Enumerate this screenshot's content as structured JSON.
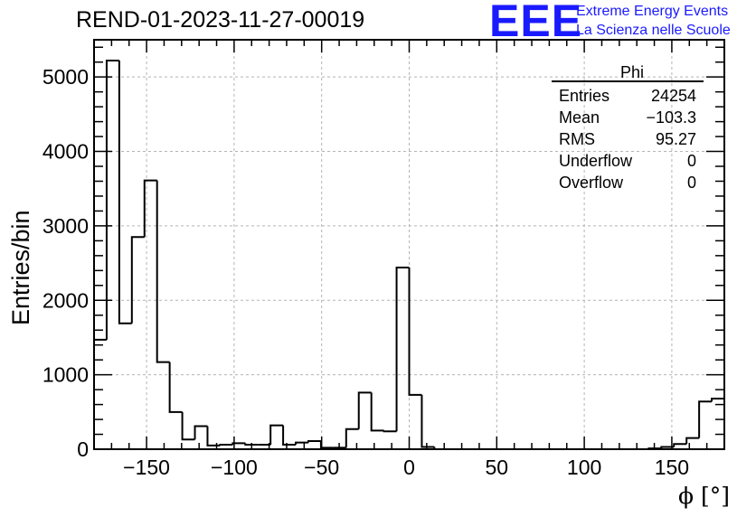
{
  "title": "REND-01-2023-11-27-00019",
  "logo": {
    "mark": "EEE",
    "line1": "Extreme Energy Events",
    "line2": "La Scienza nelle Scuole",
    "color": "#1a1aff"
  },
  "stats": {
    "title": "Phi",
    "rows": [
      {
        "label": "Entries",
        "value": "24254"
      },
      {
        "label": "Mean",
        "value": "−103.3"
      },
      {
        "label": "RMS",
        "value": "95.27"
      },
      {
        "label": "Underflow",
        "value": "0"
      },
      {
        "label": "Overflow",
        "value": "0"
      }
    ]
  },
  "chart_data": {
    "type": "histogram",
    "title": "REND-01-2023-11-27-00019",
    "xlabel": "ϕ [°]",
    "ylabel": "Entries/bin",
    "xlim": [
      -180,
      180
    ],
    "ylim": [
      0,
      5500
    ],
    "bin_width": 7.2,
    "xticks": [
      -150,
      -100,
      -50,
      0,
      50,
      100,
      150
    ],
    "xtick_labels": [
      "−150",
      "−100",
      "−50",
      "0",
      "50",
      "100",
      "150"
    ],
    "yticks": [
      0,
      1000,
      2000,
      3000,
      4000,
      5000
    ],
    "ytick_labels": [
      "0",
      "1000",
      "2000",
      "3000",
      "4000",
      "5000"
    ],
    "grid": true,
    "bins_left_edge": [
      -180,
      -172.8,
      -165.6,
      -158.4,
      -151.2,
      -144,
      -136.8,
      -129.6,
      -122.4,
      -115.2,
      -108,
      -100.8,
      -93.6,
      -86.4,
      -79.2,
      -72,
      -64.8,
      -57.6,
      -50.4,
      -43.2,
      -36,
      -28.8,
      -21.6,
      -14.4,
      -7.2,
      0,
      7.2,
      14.4,
      21.6,
      28.8,
      36,
      43.2,
      50.4,
      57.6,
      64.8,
      72,
      79.2,
      86.4,
      93.6,
      100.8,
      108,
      115.2,
      122.4,
      129.6,
      136.8,
      144,
      151.2,
      158.4,
      165.6,
      172.8
    ],
    "values": [
      1470,
      5220,
      1690,
      2850,
      3610,
      1170,
      500,
      130,
      310,
      50,
      60,
      80,
      60,
      60,
      320,
      60,
      90,
      110,
      20,
      20,
      270,
      760,
      250,
      240,
      2440,
      730,
      30,
      0,
      0,
      0,
      0,
      0,
      0,
      0,
      0,
      0,
      0,
      0,
      0,
      0,
      0,
      0,
      0,
      0,
      10,
      30,
      70,
      150,
      640,
      680
    ],
    "stats_box_position": "top-right",
    "line_color": "#000000",
    "grid_color": "#b4b4b4"
  }
}
